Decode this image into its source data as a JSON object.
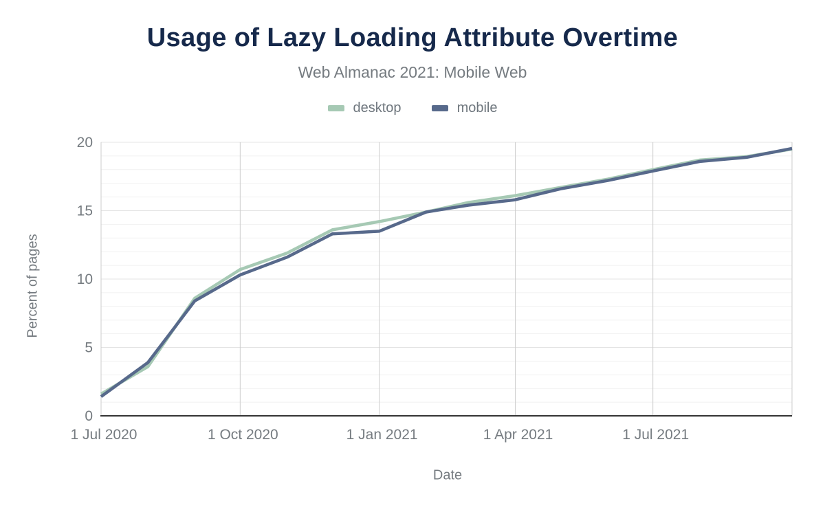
{
  "header": {
    "title": "Usage of Lazy Loading Attribute Overtime",
    "subtitle": "Web Almanac 2021: Mobile Web"
  },
  "axes": {
    "y_title": "Percent of pages",
    "x_title": "Date"
  },
  "legend": {
    "desktop_label": "desktop",
    "mobile_label": "mobile"
  },
  "colors": {
    "title": "#16294b",
    "subtitle_gray": "#757b80",
    "desktop_line": "#a6c9b4",
    "mobile_line": "#57698b",
    "minor_gridline": "#f1f1f1",
    "major_gridline": "#e4e4e4",
    "vertical_gridline": "#cccccc",
    "axis_baseline": "#333333",
    "background": "#ffffff"
  },
  "chart_data": {
    "type": "line",
    "title": "Usage of Lazy Loading Attribute Overtime",
    "subtitle": "Web Almanac 2021: Mobile Web",
    "xlabel": "Date",
    "ylabel": "Percent of pages",
    "ylim": [
      0,
      20
    ],
    "y_ticks": [
      0,
      5,
      10,
      15,
      20
    ],
    "grid": {
      "horizontal_minor_step": 1,
      "horizontal_major_step": 5,
      "vertical_at_x_ticks": true
    },
    "legend_position": "top",
    "categories": [
      "1 Jul 2020",
      "1 Aug 2020",
      "1 Sep 2020",
      "1 Oct 2020",
      "1 Nov 2020",
      "1 Dec 2020",
      "1 Jan 2021",
      "1 Feb 2021",
      "1 Mar 2021",
      "1 Apr 2021",
      "1 May 2021",
      "1 Jun 2021",
      "1 Jul 2021",
      "1 Aug 2021",
      "1 Sep 2021",
      "1 Oct 2021"
    ],
    "x_days": [
      0,
      31,
      62,
      92,
      123,
      153,
      184,
      215,
      243,
      274,
      304,
      335,
      365,
      396,
      427,
      457
    ],
    "x_tick_labels": [
      "1 Jul 2020",
      "1 Oct 2020",
      "1 Jan 2021",
      "1 Apr 2021",
      "1 Jul 2021"
    ],
    "x_tick_month_index": [
      0,
      3,
      6,
      9,
      12
    ],
    "series": [
      {
        "name": "desktop",
        "color": "#a6c9b4",
        "values": [
          1.6,
          3.6,
          8.6,
          10.7,
          11.9,
          13.6,
          14.2,
          14.9,
          15.6,
          16.1,
          16.7,
          17.3,
          18.0,
          18.7,
          18.95,
          19.5
        ]
      },
      {
        "name": "mobile",
        "color": "#57698b",
        "values": [
          1.4,
          3.9,
          8.4,
          10.3,
          11.6,
          13.3,
          13.5,
          14.9,
          15.4,
          15.8,
          16.6,
          17.2,
          17.9,
          18.6,
          18.9,
          19.55
        ]
      }
    ]
  }
}
